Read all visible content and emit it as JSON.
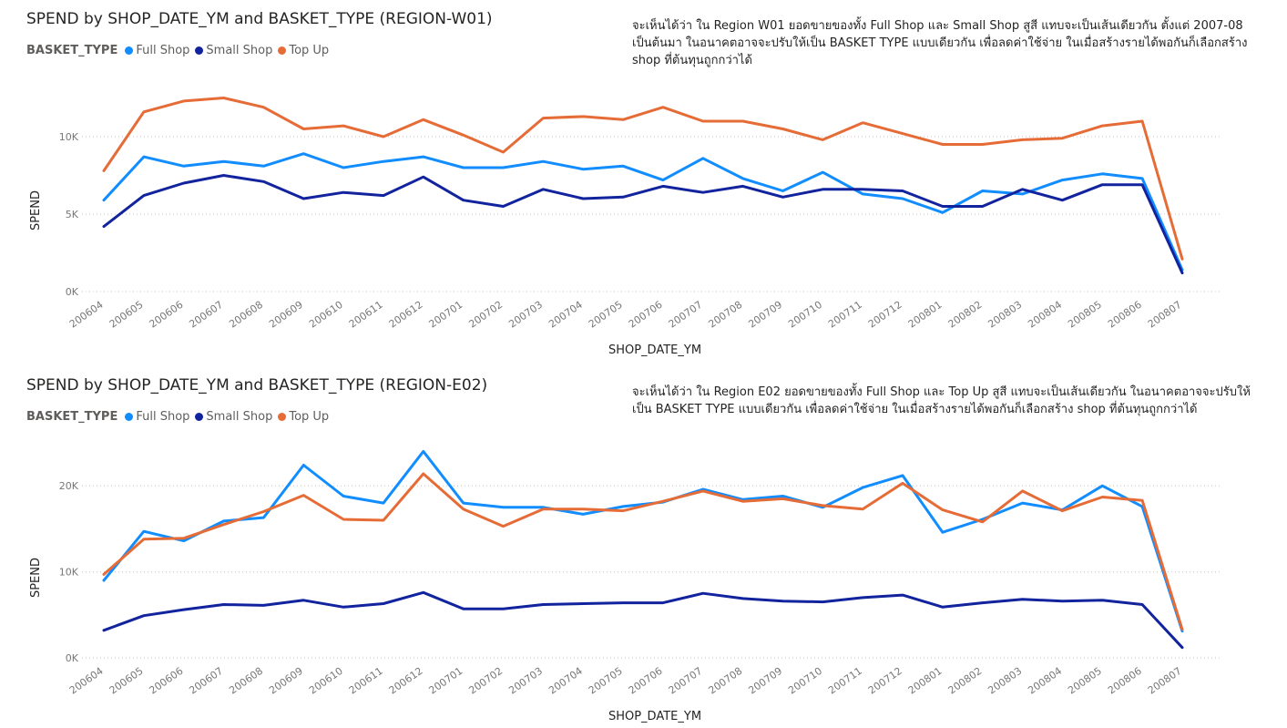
{
  "chart_data": [
    {
      "type": "line",
      "title": "SPEND by SHOP_DATE_YM and BASKET_TYPE (REGION-W01)",
      "legend_title": "BASKET_TYPE",
      "xlabel": "SHOP_DATE_YM",
      "ylabel": "SPEND",
      "annotation": "จะเห็นได้ว่า ใน Region W01 ยอดขายของทั้ง Full Shop และ Small Shop  สูสี แทบจะเป็นเส้นเดียวกัน ตั้งแต่ 2007-08 เป็นต้นมา ในอนาคตอาจจะปรับให้เป็น  BASKET TYPE แบบเดียวกัน เพื่อลดค่าใช้จ่าย ในเมื่อสร้างรายได้พอกันก็เลือกสร้าง shop ที่ต้นทุนถูกกว่าได้",
      "ylim": [
        0,
        14000
      ],
      "yticks": [
        0,
        5000,
        10000
      ],
      "ytick_labels": [
        "0K",
        "5K",
        "10K"
      ],
      "grid": true,
      "legend_position": "top-left",
      "categories": [
        "200604",
        "200605",
        "200606",
        "200607",
        "200608",
        "200609",
        "200610",
        "200611",
        "200612",
        "200701",
        "200702",
        "200703",
        "200704",
        "200705",
        "200706",
        "200707",
        "200708",
        "200709",
        "200710",
        "200711",
        "200712",
        "200801",
        "200802",
        "200803",
        "200804",
        "200805",
        "200806",
        "200807"
      ],
      "series": [
        {
          "name": "Full Shop",
          "color": "#118DFF",
          "values": [
            5900,
            8700,
            8100,
            8400,
            8100,
            8900,
            8000,
            8400,
            8700,
            8000,
            8000,
            8400,
            7900,
            8100,
            7200,
            8600,
            7300,
            6500,
            7700,
            6300,
            6000,
            5100,
            6500,
            6300,
            7200,
            7600,
            7300,
            1400
          ]
        },
        {
          "name": "Small Shop",
          "color": "#12239E",
          "values": [
            4200,
            6200,
            7000,
            7500,
            7100,
            6000,
            6400,
            6200,
            7400,
            5900,
            5500,
            6600,
            6000,
            6100,
            6800,
            6400,
            6800,
            6100,
            6600,
            6600,
            6500,
            5500,
            5500,
            6600,
            5900,
            6900,
            6900,
            1200
          ]
        },
        {
          "name": "Top Up",
          "color": "#E66C37",
          "values": [
            7800,
            11600,
            12300,
            12500,
            11900,
            10500,
            10700,
            10000,
            11100,
            10100,
            9000,
            11200,
            11300,
            11100,
            11900,
            11000,
            11000,
            10500,
            9800,
            10900,
            10200,
            9500,
            9500,
            9800,
            9900,
            10700,
            11000,
            2100
          ]
        }
      ]
    },
    {
      "type": "line",
      "title": "SPEND by SHOP_DATE_YM and BASKET_TYPE (REGION-E02)",
      "legend_title": "BASKET_TYPE",
      "xlabel": "SHOP_DATE_YM",
      "ylabel": "SPEND",
      "annotation": "จะเห็นได้ว่า ใน Region E02 ยอดขายของทั้ง Full Shop และ Top Up  สูสี แทบจะเป็นเส้นเดียวกัน ในอนาคตอาจจะปรับให้เป็น  BASKET TYPE แบบเดียวกัน เพื่อลดค่าใช้จ่าย ในเมื่อสร้างรายได้พอกันก็เลือกสร้าง shop ที่ต้นทุนถูกกว่าได้",
      "ylim": [
        0,
        25000
      ],
      "yticks": [
        0,
        10000,
        20000
      ],
      "ytick_labels": [
        "0K",
        "10K",
        "20K"
      ],
      "grid": true,
      "legend_position": "top-left",
      "categories": [
        "200604",
        "200605",
        "200606",
        "200607",
        "200608",
        "200609",
        "200610",
        "200611",
        "200612",
        "200701",
        "200702",
        "200703",
        "200704",
        "200705",
        "200706",
        "200707",
        "200708",
        "200709",
        "200710",
        "200711",
        "200712",
        "200801",
        "200802",
        "200803",
        "200804",
        "200805",
        "200806",
        "200807"
      ],
      "series": [
        {
          "name": "Full Shop",
          "color": "#118DFF",
          "values": [
            9000,
            14700,
            13600,
            15900,
            16300,
            22400,
            18800,
            18000,
            24000,
            18000,
            17500,
            17500,
            16700,
            17600,
            18100,
            19600,
            18400,
            18800,
            17500,
            19800,
            21200,
            14600,
            16100,
            18000,
            17200,
            20000,
            17600,
            3100
          ]
        },
        {
          "name": "Small Shop",
          "color": "#12239E",
          "values": [
            3200,
            4900,
            5600,
            6200,
            6100,
            6700,
            5900,
            6300,
            7600,
            5700,
            5700,
            6200,
            6300,
            6400,
            6400,
            7500,
            6900,
            6600,
            6500,
            7000,
            7300,
            5900,
            6400,
            6800,
            6600,
            6700,
            6200,
            1200
          ]
        },
        {
          "name": "Top Up",
          "color": "#E66C37",
          "values": [
            9700,
            13800,
            13900,
            15500,
            17000,
            18900,
            16100,
            16000,
            21400,
            17300,
            15300,
            17300,
            17300,
            17100,
            18200,
            19400,
            18200,
            18500,
            17700,
            17300,
            20300,
            17200,
            15800,
            19400,
            17100,
            18700,
            18300,
            3300
          ]
        }
      ]
    }
  ]
}
